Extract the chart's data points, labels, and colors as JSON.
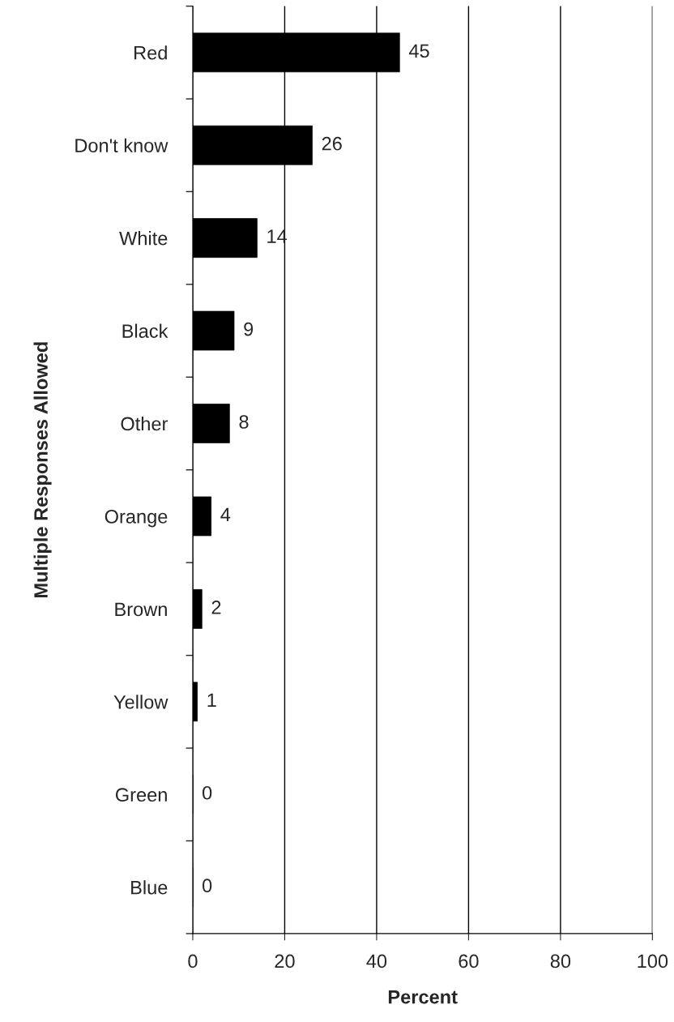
{
  "chart_data": {
    "type": "bar",
    "orientation": "horizontal",
    "xlabel": "Percent",
    "ylabel": "Multiple Responses Allowed",
    "categories": [
      "Red",
      "Don't know",
      "White",
      "Black",
      "Other",
      "Orange",
      "Brown",
      "Yellow",
      "Green",
      "Blue"
    ],
    "values": [
      45,
      26,
      14,
      9,
      8,
      4,
      2,
      1,
      0,
      0
    ],
    "color": "#000000",
    "xlim": [
      0,
      100
    ],
    "xticks": [
      0,
      20,
      40,
      60,
      80,
      100
    ],
    "grid": "x",
    "data_labels": true
  }
}
